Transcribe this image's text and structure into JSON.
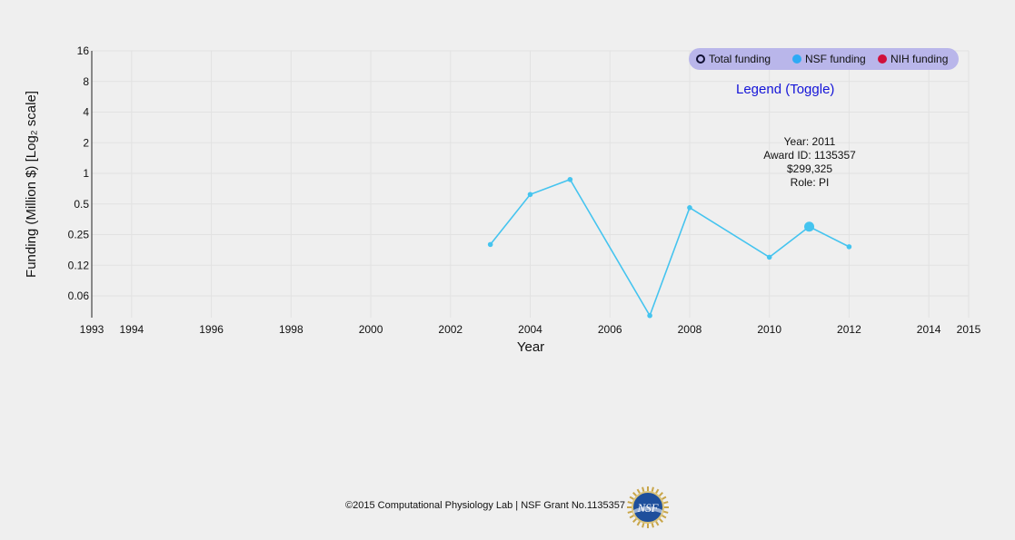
{
  "chart_data": {
    "type": "line",
    "xlabel": "Year",
    "ylabel": "Funding (Million $) [Log₂ scale]",
    "y_scale": "log2",
    "xlim": [
      1993,
      2015
    ],
    "x_ticks": [
      "1993",
      "1994",
      "1996",
      "1998",
      "2000",
      "2002",
      "2004",
      "2006",
      "2008",
      "2010",
      "2012",
      "2014",
      "2015"
    ],
    "y_ticks": [
      "0.06",
      "0.12",
      "0.25",
      "0.5",
      "1",
      "2",
      "4",
      "8",
      "16"
    ],
    "grid": true,
    "series": [
      {
        "name": "NSF funding",
        "color": "#45c4ef",
        "points": [
          {
            "x": 2003,
            "y": 0.2
          },
          {
            "x": 2004,
            "y": 0.62
          },
          {
            "x": 2005,
            "y": 0.87
          },
          {
            "x": 2007,
            "y": 0.04
          },
          {
            "x": 2008,
            "y": 0.46
          },
          {
            "x": 2010,
            "y": 0.15
          },
          {
            "x": 2011,
            "y": 0.299325
          },
          {
            "x": 2012,
            "y": 0.19
          }
        ]
      }
    ],
    "highlighted_point": {
      "x": 2011,
      "y": 0.299325
    }
  },
  "legend": {
    "items": [
      {
        "label": "Total funding",
        "color": "#111133",
        "style": "ring"
      },
      {
        "label": "NSF funding",
        "color": "#2eaaf5",
        "style": "filled"
      },
      {
        "label": "NIH funding",
        "color": "#d0103a",
        "style": "filled"
      }
    ],
    "toggle_label": "Legend (Toggle)"
  },
  "tooltip": {
    "line1": "Year: 2011",
    "line2": "Award ID: 1135357",
    "line3": "$299,325",
    "line4": "Role: PI"
  },
  "footer": {
    "text": "©2015 Computational Physiology Lab | NSF Grant No.1135357",
    "logo_text": "NSF"
  }
}
